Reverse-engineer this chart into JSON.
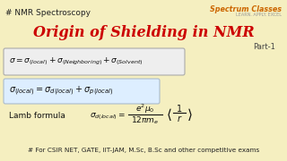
{
  "bg_color": "#f5efc0",
  "title_text": "Origin of Shielding in NMR",
  "title_color": "#cc0000",
  "header_text": "# NMR Spectroscopy",
  "header_color": "#222222",
  "part_text": "Part-1",
  "part_color": "#444444",
  "logo_line1": "Spectrum Classes",
  "logo_line2": "LEARN. APPLY. EXCEL",
  "logo_color1": "#cc6600",
  "logo_color2": "#999999",
  "eq1": "$\\sigma = \\sigma_{(local)} + \\sigma_{(Neighboring)} + \\sigma_{(Solvent)}$",
  "eq2": "$\\sigma_{(local)} = \\sigma_{d(local)} + \\sigma_{p(local)}$",
  "lamb_label": "Lamb formula",
  "footer": "# For CSIR NET, GATE, IIT-JAM, M.Sc, B.Sc and other competitive exams",
  "footer_color": "#222222",
  "box1_color": "#eeeeee",
  "box2_color": "#ddeeff",
  "text_color": "#111111"
}
